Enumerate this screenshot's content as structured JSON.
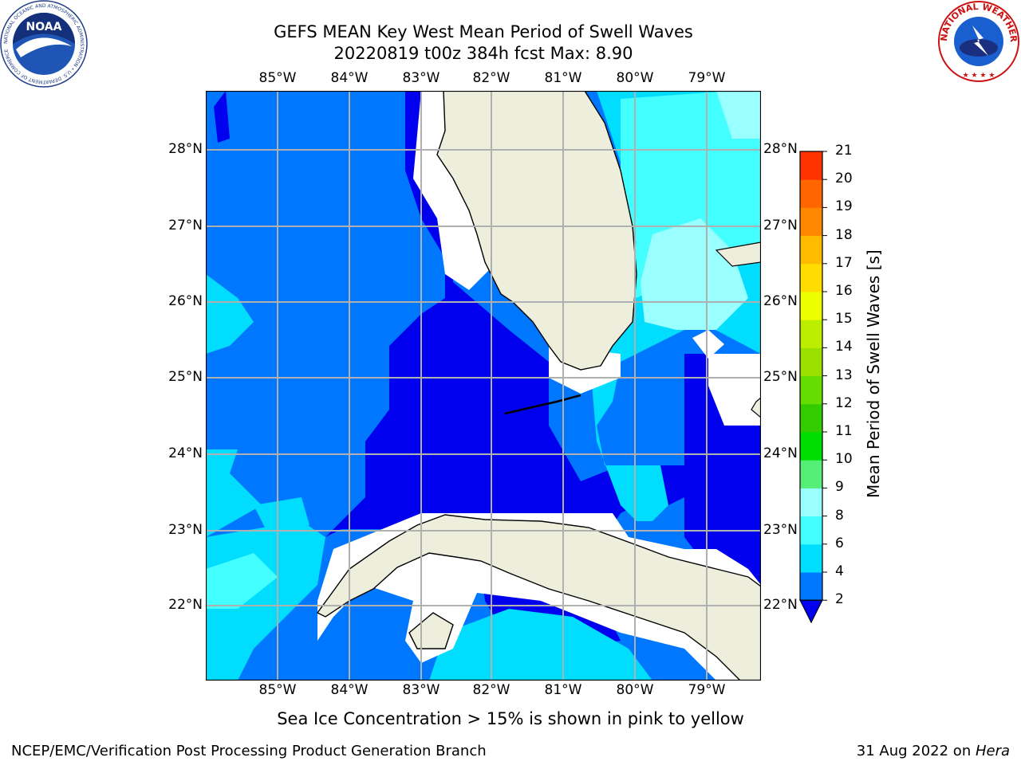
{
  "title": {
    "line1": "GEFS MEAN Key West Mean Period of Swell Waves",
    "line2": "20220819 t00z 384h fcst   Max: 8.90"
  },
  "logos": {
    "noaa": "NOAA",
    "noaa_ring": "NATIONAL OCEANIC AND ATMOSPHERIC ADMINISTRATION • U.S. DEPARTMENT OF COMMERCE",
    "nws_ring": "NATIONAL WEATHER SERVICE"
  },
  "map": {
    "lon_labels": [
      "85°W",
      "84°W",
      "83°W",
      "82°W",
      "81°W",
      "80°W",
      "79°W"
    ],
    "lat_labels": [
      "28°N",
      "27°N",
      "26°N",
      "25°N",
      "24°N",
      "23°N",
      "22°N"
    ],
    "colors": {
      "land": "#eeeedd",
      "gray_grid": "#b0b0b0",
      "band_2_4": "#0077ff",
      "below_2": "#0000ee",
      "band_4_6": "#00ddff",
      "band_6_8": "#44ffff",
      "band_8_9": "#99ffff"
    }
  },
  "colorbar": {
    "label": "Mean Period of Swell Waves [s]",
    "ticks": [
      "2",
      "4",
      "6",
      "8",
      "9",
      "10",
      "11",
      "12",
      "13",
      "14",
      "15",
      "16",
      "17",
      "18",
      "19",
      "20",
      "21"
    ],
    "colors": [
      "#0077ff",
      "#00ddff",
      "#44ffff",
      "#99ffff",
      "#55ee77",
      "#00dd00",
      "#33cc00",
      "#66dd00",
      "#99e000",
      "#bbee00",
      "#eeff00",
      "#ffdd00",
      "#ffbb00",
      "#ff8800",
      "#ff6600",
      "#ff3300",
      "#ff0000"
    ],
    "under_color": "#0000ee"
  },
  "caption": "Sea Ice Concentration > 15% is shown in pink to yellow",
  "credit_left": "NCEP/EMC/Verification Post Processing Product Generation Branch",
  "credit_right": {
    "date": "31 Aug 2022 on ",
    "machine": "Hera"
  }
}
